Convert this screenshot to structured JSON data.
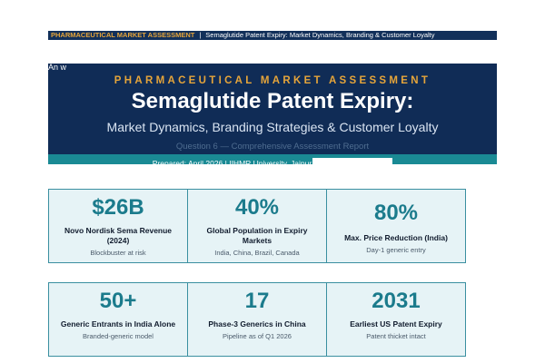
{
  "topbar": {
    "brand": "PHARMACEUTICAL MARKET ASSESSMENT",
    "separator": "|",
    "title": "Semaglutide Patent Expiry: Market Dynamics, Branding & Customer Loyalty"
  },
  "stray_text": "An w",
  "hero": {
    "kicker": "PHARMACEUTICAL MARKET ASSESSMENT",
    "title": "Semaglutide Patent Expiry:",
    "subtitle": "Market Dynamics, Branding Strategies & Customer Loyalty",
    "question": "Question 6 — Comprehensive Assessment Report",
    "prepared": "Prepared: April 2026  |  IIHMR University, Jaipur"
  },
  "metrics_row1": [
    {
      "value": "$26B",
      "label": "Novo Nordisk Sema Revenue (2024)",
      "note": "Blockbuster at risk"
    },
    {
      "value": "40%",
      "label": "Global Population in Expiry Markets",
      "note": "India, China, Brazil, Canada"
    },
    {
      "value": "80%",
      "label": "Max. Price Reduction (India)",
      "note": "Day-1 generic entry"
    }
  ],
  "metrics_row2": [
    {
      "value": "50+",
      "label": "Generic Entrants in India Alone",
      "note": "Branded-generic model"
    },
    {
      "value": "17",
      "label": "Phase-3 Generics in China",
      "note": "Pipeline as of Q1 2026"
    },
    {
      "value": "2031",
      "label": "Earliest US Patent Expiry",
      "note": "Patent thicket intact"
    }
  ],
  "colors": {
    "navy": "#102c56",
    "gold": "#e6a53a",
    "teal": "#1a8a94",
    "card_bg": "#e6f3f6",
    "value_teal": "#1b7b8c"
  }
}
